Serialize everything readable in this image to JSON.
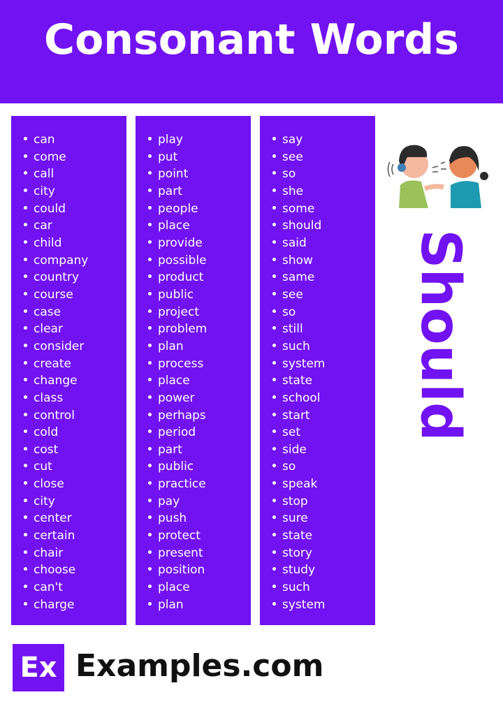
{
  "header": {
    "title": "Consonant Words"
  },
  "columns": [
    {
      "words": [
        "can",
        "come",
        "call",
        "city",
        "could",
        "car",
        "child",
        "company",
        "country",
        "course",
        "case",
        "clear",
        "consider",
        "create",
        "change",
        "class",
        "control",
        "cold",
        "cost",
        "cut",
        "close",
        "city",
        "center",
        "certain",
        "chair",
        "choose",
        "can't",
        "charge"
      ]
    },
    {
      "words": [
        "play",
        "put",
        "point",
        "part",
        "people",
        "place",
        "provide",
        "possible",
        "product",
        "public",
        "project",
        "problem",
        "plan",
        "process",
        "place",
        "power",
        "perhaps",
        "period",
        "part",
        "public",
        "practice",
        "pay",
        "push",
        "protect",
        "present",
        "position",
        "place",
        "plan"
      ]
    },
    {
      "words": [
        "say",
        "see",
        "so",
        "she",
        "some",
        "should",
        "said",
        "show",
        "same",
        "see",
        "so",
        "still",
        "such",
        "system",
        "state",
        "school",
        "start",
        "set",
        "side",
        "so",
        "speak",
        "stop",
        "sure",
        "state",
        "story",
        "study",
        "such",
        "system"
      ]
    }
  ],
  "side": {
    "vertical_word": "Should",
    "illustration": "two-children-talking"
  },
  "footer": {
    "logo_text": "Ex",
    "brand": "Examples.com"
  },
  "colors": {
    "accent": "#7112f2",
    "text_on_accent": "#ffffff"
  }
}
